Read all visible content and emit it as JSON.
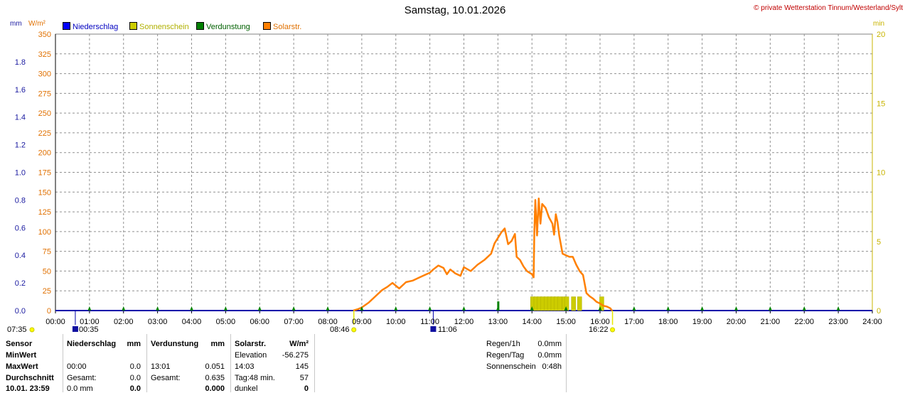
{
  "header": {
    "title": "Samstag, 10.01.2026",
    "copyright": "© private Wetterstation Tinnum/Westerland/Sylt",
    "unit_mm": "mm",
    "unit_wm2": "W/m²",
    "unit_min": "min"
  },
  "legend": [
    {
      "label": "Niederschlag",
      "color": "#0000ff"
    },
    {
      "label": "Sonnenschein",
      "color": "#cccc00"
    },
    {
      "label": "Verdunstung",
      "color": "#008000"
    },
    {
      "label": "Solarstr.",
      "color": "#ff8000"
    }
  ],
  "chart_data": {
    "type": "line",
    "title": "Samstag, 10.01.2026",
    "x_ticks": [
      "00:00",
      "01:00",
      "02:00",
      "03:00",
      "04:00",
      "05:00",
      "06:00",
      "07:00",
      "08:00",
      "09:00",
      "10:00",
      "11:00",
      "12:00",
      "13:00",
      "14:00",
      "15:00",
      "16:00",
      "17:00",
      "18:00",
      "19:00",
      "20:00",
      "21:00",
      "22:00",
      "23:00",
      "24:00"
    ],
    "y_left_mm_ticks": [
      "0.0",
      "0.2",
      "0.4",
      "0.6",
      "0.8",
      "1.0",
      "1.2",
      "1.4",
      "1.6",
      "1.8"
    ],
    "y_left_wm2_ticks": [
      "0",
      "25",
      "50",
      "75",
      "100",
      "125",
      "150",
      "175",
      "200",
      "225",
      "250",
      "275",
      "300",
      "325",
      "350"
    ],
    "y_right_min_ticks": [
      "0",
      "5",
      "10",
      "15",
      "20"
    ],
    "ylim_wm2": [
      0,
      350
    ],
    "ylim_mm": [
      0,
      2
    ],
    "ylim_min": [
      0,
      20
    ],
    "xlim_hours": [
      0,
      24
    ],
    "grid": true,
    "series": [
      {
        "name": "Solarstr.",
        "color": "#ff8000",
        "unit": "W/m²",
        "points": [
          [
            8.75,
            0
          ],
          [
            8.9,
            2
          ],
          [
            9.0,
            4
          ],
          [
            9.2,
            10
          ],
          [
            9.4,
            18
          ],
          [
            9.6,
            26
          ],
          [
            9.75,
            30
          ],
          [
            9.9,
            35
          ],
          [
            10.1,
            28
          ],
          [
            10.3,
            36
          ],
          [
            10.5,
            38
          ],
          [
            10.7,
            42
          ],
          [
            10.9,
            46
          ],
          [
            11.0,
            48
          ],
          [
            11.1,
            52
          ],
          [
            11.25,
            57
          ],
          [
            11.4,
            54
          ],
          [
            11.5,
            46
          ],
          [
            11.6,
            52
          ],
          [
            11.75,
            47
          ],
          [
            11.9,
            44
          ],
          [
            12.0,
            55
          ],
          [
            12.2,
            50
          ],
          [
            12.4,
            58
          ],
          [
            12.6,
            64
          ],
          [
            12.8,
            72
          ],
          [
            12.9,
            85
          ],
          [
            13.0,
            92
          ],
          [
            13.1,
            99
          ],
          [
            13.2,
            104
          ],
          [
            13.3,
            84
          ],
          [
            13.4,
            88
          ],
          [
            13.5,
            97
          ],
          [
            13.55,
            68
          ],
          [
            13.65,
            64
          ],
          [
            13.75,
            56
          ],
          [
            13.85,
            50
          ],
          [
            14.0,
            46
          ],
          [
            14.05,
            42
          ],
          [
            14.07,
            100
          ],
          [
            14.1,
            140
          ],
          [
            14.15,
            95
          ],
          [
            14.2,
            142
          ],
          [
            14.25,
            110
          ],
          [
            14.3,
            135
          ],
          [
            14.4,
            130
          ],
          [
            14.5,
            118
          ],
          [
            14.6,
            110
          ],
          [
            14.65,
            96
          ],
          [
            14.7,
            122
          ],
          [
            14.75,
            112
          ],
          [
            14.8,
            95
          ],
          [
            14.9,
            72
          ],
          [
            15.0,
            70
          ],
          [
            15.1,
            68
          ],
          [
            15.2,
            68
          ],
          [
            15.3,
            58
          ],
          [
            15.4,
            50
          ],
          [
            15.5,
            45
          ],
          [
            15.6,
            22
          ],
          [
            15.7,
            18
          ],
          [
            15.8,
            15
          ],
          [
            15.9,
            11
          ],
          [
            16.0,
            9
          ],
          [
            16.1,
            6
          ],
          [
            16.2,
            5
          ],
          [
            16.3,
            3
          ],
          [
            16.35,
            0
          ]
        ]
      },
      {
        "name": "Sonnenschein",
        "color": "#cccc00",
        "unit": "min",
        "points": [
          [
            14.02,
            1
          ],
          [
            14.12,
            1
          ],
          [
            14.22,
            1
          ],
          [
            14.32,
            1
          ],
          [
            14.42,
            1
          ],
          [
            14.52,
            1
          ],
          [
            14.62,
            1
          ],
          [
            14.72,
            1
          ],
          [
            14.82,
            1
          ],
          [
            14.95,
            1
          ],
          [
            15.02,
            1
          ],
          [
            15.22,
            1
          ],
          [
            15.4,
            1
          ],
          [
            16.05,
            1
          ]
        ]
      },
      {
        "name": "Verdunstung",
        "color": "#008000",
        "unit": "mm",
        "points": [
          [
            13.01,
            0.051
          ]
        ]
      }
    ],
    "events": [
      {
        "time": "07:35",
        "kind": "sunrise-dawn"
      },
      {
        "time": "00:35",
        "kind": "moon"
      },
      {
        "time": "08:46",
        "kind": "sunrise"
      },
      {
        "time": "11:06",
        "kind": "moon"
      },
      {
        "time": "16:22",
        "kind": "sunset"
      }
    ]
  },
  "stats": {
    "rows": [
      {
        "label": "Sensor",
        "c1": "Niederschlag",
        "c1u": "mm",
        "c2": "Verdunstung",
        "c2u": "mm",
        "c3": "Solarstr.",
        "c3u": "W/m²"
      },
      {
        "label": "MinWert",
        "c1": "",
        "c1u": "",
        "c2": "",
        "c2u": "",
        "c3": "Elevation",
        "c3u": "-56.275"
      },
      {
        "label": "MaxWert",
        "c1": "00:00",
        "c1u": "0.0",
        "c2": "13:01",
        "c2u": "0.051",
        "c3": "14:03",
        "c3u": "145"
      },
      {
        "label": "Durchschnitt",
        "c1": "Gesamt:",
        "c1u": "0.0",
        "c2": "Gesamt:",
        "c2u": "0.635",
        "c3": "Tag:48 min.",
        "c3u": "57"
      },
      {
        "label": "10.01. 23:59",
        "c1": "0.0 mm",
        "c1u": "0.0",
        "c2": "",
        "c2u": "0.000",
        "c3": "dunkel",
        "c3u": "0"
      }
    ],
    "right": [
      {
        "label": "Regen/1h",
        "value": "0.0mm"
      },
      {
        "label": "Regen/Tag",
        "value": "0.0mm"
      },
      {
        "label": "Sonnenschein",
        "value": "0:48h"
      }
    ]
  }
}
